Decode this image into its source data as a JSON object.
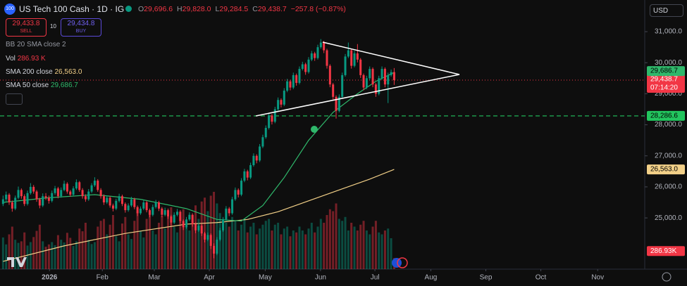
{
  "toolbar": {
    "logo": "100",
    "currency": "USD",
    "sell_price": "29,433.8",
    "sell": "SELL",
    "spread": "10",
    "buy_price": "29,434.8",
    "buy": "BUY",
    "bb_indicator": "BB 20 SMA close 2"
  },
  "chart_data": {
    "type": "candlestick",
    "title": "US Tech 100 Cash · 1D · IG",
    "legend_values": [
      {
        "prefix": "O",
        "text": "29,696.6"
      },
      {
        "prefix": "H",
        "text": "29,828.0"
      },
      {
        "prefix": "L",
        "text": "29,284.5"
      },
      {
        "prefix": "C",
        "text": "29,438.7"
      }
    ],
    "change": "−257.8 (−0.87%)",
    "countdown": "07:14:20",
    "up_color": "#089981",
    "down_color": "#f23645",
    "ohlc": [
      [
        25450,
        25720,
        25380,
        25600
      ],
      [
        25600,
        25850,
        25520,
        25750
      ],
      [
        25750,
        25800,
        25420,
        25500
      ],
      [
        25500,
        25560,
        25200,
        25300
      ],
      [
        25300,
        25720,
        25250,
        25650
      ],
      [
        25650,
        26010,
        25600,
        25900
      ],
      [
        25900,
        25950,
        25620,
        25700
      ],
      [
        25700,
        25760,
        25380,
        25450
      ],
      [
        25450,
        25880,
        25400,
        25800
      ],
      [
        25800,
        26120,
        25750,
        26000
      ],
      [
        26000,
        26060,
        25780,
        25850
      ],
      [
        25850,
        25900,
        25520,
        25600
      ],
      [
        25600,
        25650,
        25310,
        25400
      ],
      [
        25400,
        25790,
        25350,
        25700
      ],
      [
        25700,
        25800,
        25580,
        25650
      ],
      [
        25650,
        25720,
        25460,
        25550
      ],
      [
        25550,
        25880,
        25500,
        25800
      ],
      [
        25800,
        26030,
        25740,
        25950
      ],
      [
        25950,
        26000,
        25630,
        25700
      ],
      [
        25700,
        25980,
        25650,
        25900
      ],
      [
        25900,
        26200,
        25860,
        26100
      ],
      [
        26100,
        26150,
        25780,
        25850
      ],
      [
        25850,
        25900,
        25680,
        25750
      ],
      [
        25750,
        26020,
        25700,
        25950
      ],
      [
        25950,
        26240,
        25900,
        26150
      ],
      [
        26150,
        26190,
        25840,
        25900
      ],
      [
        25900,
        25960,
        25620,
        25700
      ],
      [
        25700,
        25760,
        25520,
        25600
      ],
      [
        25600,
        25930,
        25550,
        25850
      ],
      [
        25850,
        26120,
        25800,
        26050
      ],
      [
        26050,
        26310,
        26000,
        26200
      ],
      [
        26200,
        26250,
        25840,
        25900
      ],
      [
        25900,
        25960,
        25620,
        25700
      ],
      [
        25700,
        25760,
        25420,
        25500
      ],
      [
        25500,
        25720,
        25450,
        25650
      ],
      [
        25650,
        25700,
        25330,
        25400
      ],
      [
        25400,
        25460,
        25210,
        25300
      ],
      [
        25300,
        25620,
        25250,
        25550
      ],
      [
        25550,
        25780,
        25500,
        25700
      ],
      [
        25700,
        25750,
        25380,
        25450
      ],
      [
        25450,
        25500,
        25170,
        25250
      ],
      [
        25250,
        25470,
        25200,
        25400
      ],
      [
        25400,
        25680,
        25350,
        25600
      ],
      [
        25600,
        25650,
        25280,
        25350
      ],
      [
        25350,
        25400,
        25060,
        25150
      ],
      [
        25150,
        25370,
        25100,
        25300
      ],
      [
        25300,
        25580,
        25250,
        25500
      ],
      [
        25500,
        25550,
        25180,
        25250
      ],
      [
        25250,
        25300,
        25020,
        25100
      ],
      [
        25100,
        25430,
        25050,
        25350
      ],
      [
        25350,
        25580,
        25300,
        25500
      ],
      [
        25500,
        25550,
        25220,
        25300
      ],
      [
        25300,
        25350,
        25020,
        25100
      ],
      [
        25100,
        25330,
        25050,
        25250
      ],
      [
        25250,
        25300,
        24970,
        25050
      ],
      [
        25050,
        25100,
        24760,
        24850
      ],
      [
        24850,
        25180,
        24800,
        25100
      ],
      [
        25100,
        25290,
        25050,
        25200
      ],
      [
        25200,
        25250,
        24820,
        24900
      ],
      [
        24900,
        24950,
        24610,
        24700
      ],
      [
        24700,
        25030,
        24650,
        24950
      ],
      [
        24950,
        25180,
        24900,
        25100
      ],
      [
        25100,
        25150,
        24720,
        24800
      ],
      [
        24800,
        24850,
        24510,
        24600
      ],
      [
        24600,
        24830,
        24550,
        24750
      ],
      [
        24750,
        24800,
        24420,
        24500
      ],
      [
        24500,
        24550,
        24210,
        24300
      ],
      [
        24300,
        24530,
        24250,
        24450
      ],
      [
        24450,
        24500,
        24000,
        24100
      ],
      [
        24100,
        24180,
        23700,
        23850
      ],
      [
        23850,
        24380,
        23800,
        24300
      ],
      [
        24300,
        24680,
        24250,
        24600
      ],
      [
        24600,
        25030,
        24550,
        24950
      ],
      [
        24950,
        25380,
        24900,
        25300
      ],
      [
        25300,
        25350,
        25060,
        25150
      ],
      [
        25150,
        25680,
        25100,
        25600
      ],
      [
        25600,
        25980,
        25550,
        25900
      ],
      [
        25900,
        25950,
        25660,
        25750
      ],
      [
        25750,
        26280,
        25700,
        26200
      ],
      [
        26200,
        26580,
        26150,
        26500
      ],
      [
        26500,
        26550,
        26210,
        26300
      ],
      [
        26300,
        26780,
        26250,
        26700
      ],
      [
        26700,
        27080,
        26650,
        27000
      ],
      [
        27000,
        27050,
        26760,
        26850
      ],
      [
        26850,
        27380,
        26800,
        27300
      ],
      [
        27300,
        27680,
        27250,
        27600
      ],
      [
        27600,
        27980,
        27550,
        27900
      ],
      [
        27900,
        28380,
        27850,
        28300
      ],
      [
        28300,
        28350,
        28010,
        28100
      ],
      [
        28100,
        28580,
        28050,
        28500
      ],
      [
        28500,
        28880,
        28450,
        28800
      ],
      [
        28800,
        28850,
        28560,
        28650
      ],
      [
        28650,
        29180,
        28600,
        29100
      ],
      [
        29100,
        29480,
        29050,
        29400
      ],
      [
        29400,
        29450,
        29110,
        29200
      ],
      [
        29200,
        29680,
        29150,
        29600
      ],
      [
        29600,
        29650,
        29260,
        29350
      ],
      [
        29350,
        29880,
        29300,
        29800
      ],
      [
        29800,
        30030,
        29750,
        29950
      ],
      [
        29950,
        30000,
        29610,
        29700
      ],
      [
        29700,
        30180,
        29650,
        30100
      ],
      [
        30100,
        30380,
        30050,
        30300
      ],
      [
        30300,
        30350,
        30060,
        30150
      ],
      [
        30150,
        30580,
        30100,
        30500
      ],
      [
        30500,
        30760,
        30450,
        30650
      ],
      [
        30650,
        30700,
        30310,
        30400
      ],
      [
        30400,
        30450,
        29810,
        29900
      ],
      [
        29900,
        29950,
        29210,
        29300
      ],
      [
        29300,
        29350,
        28810,
        28900
      ],
      [
        28900,
        28950,
        28200,
        28450
      ],
      [
        28450,
        28980,
        28400,
        28900
      ],
      [
        28900,
        29680,
        28850,
        29600
      ],
      [
        29600,
        30280,
        29550,
        30200
      ],
      [
        30200,
        30650,
        30150,
        30400
      ],
      [
        30400,
        30450,
        29810,
        29900
      ],
      [
        29900,
        30380,
        29850,
        30300
      ],
      [
        30300,
        30600,
        30010,
        30100
      ],
      [
        30100,
        30150,
        29510,
        29600
      ],
      [
        29600,
        29650,
        29110,
        29200
      ],
      [
        29200,
        29580,
        29150,
        29500
      ],
      [
        29500,
        29880,
        29450,
        29800
      ],
      [
        29800,
        29850,
        29210,
        29300
      ],
      [
        29300,
        29350,
        28900,
        29000
      ],
      [
        29000,
        29580,
        28950,
        29500
      ],
      [
        29500,
        29880,
        29450,
        29800
      ],
      [
        29800,
        29850,
        29210,
        29300
      ],
      [
        29300,
        29680,
        28700,
        29600
      ],
      [
        29600,
        29780,
        29550,
        29696.5
      ],
      [
        29696.6,
        29828.0,
        29284.5,
        29438.7
      ]
    ],
    "volume": {
      "name": "Vol",
      "last_label": "286.93 K",
      "axis_label": "286.93K",
      "values": [
        820,
        640,
        900,
        1100,
        760,
        680,
        720,
        950,
        610,
        700,
        830,
        990,
        1150,
        720,
        580,
        640,
        700,
        620,
        880,
        760,
        690,
        940,
        810,
        600,
        720,
        1050,
        980,
        1200,
        760,
        650,
        700,
        1100,
        1250,
        1300,
        900,
        1150,
        1400,
        850,
        720,
        1180,
        1350,
        900,
        780,
        1250,
        1500,
        980,
        820,
        1300,
        1450,
        1000,
        900,
        1200,
        1380,
        1050,
        1400,
        1600,
        1100,
        950,
        1350,
        1550,
        1200,
        1000,
        1400,
        1650,
        1300,
        1750,
        1850,
        1500,
        1900,
        2000,
        1700,
        1450,
        1300,
        1200,
        1100,
        1350,
        1250,
        1000,
        1150,
        1300,
        950,
        1100,
        1200,
        900,
        1050,
        1150,
        1250,
        1300,
        1000,
        1150,
        1200,
        900,
        1050,
        1100,
        850,
        1000,
        950,
        1100,
        1000,
        900,
        1050,
        1200,
        950,
        1100,
        1300,
        1200,
        1400,
        1550,
        1500,
        1700,
        1300,
        1250,
        1350,
        1000,
        1200,
        1100,
        1000,
        1150,
        1250,
        1000,
        900,
        1100,
        1250,
        950,
        900,
        1000,
        1050,
        800,
        286.93
      ],
      "max": 2000
    },
    "series": [
      {
        "name": "SMA 200 close",
        "value_label": "26,563.0",
        "color": "#f2d088",
        "x": [
          0,
          20,
          40,
          60,
          70,
          80,
          90,
          100,
          110,
          120,
          128
        ],
        "values": [
          23600,
          24100,
          24500,
          24800,
          24850,
          24950,
          25200,
          25550,
          25900,
          26250,
          26563
        ]
      },
      {
        "name": "SMA 50 close",
        "value_label": "29,686.7",
        "color": "#2fb86b",
        "x": [
          0,
          15,
          30,
          45,
          60,
          70,
          78,
          85,
          92,
          100,
          108,
          116,
          122,
          128
        ],
        "values": [
          25500,
          25650,
          25750,
          25600,
          25300,
          24950,
          24900,
          25400,
          26300,
          27500,
          28400,
          29000,
          29400,
          29686.7
        ]
      }
    ],
    "hline": {
      "value": 28286.6,
      "label": "28,286.6",
      "color": "#22c55e"
    },
    "xlim": [
      -1,
      210
    ],
    "ylim": [
      23350,
      32020
    ],
    "xticks": [
      {
        "value": 15.2,
        "label": "2026"
      },
      {
        "value": 32.5,
        "label": "Feb"
      },
      {
        "value": 49.5,
        "label": "Mar"
      },
      {
        "value": 67.5,
        "label": "Apr"
      },
      {
        "value": 85.8,
        "label": "May"
      },
      {
        "value": 103.9,
        "label": "Jun"
      },
      {
        "value": 121.7,
        "label": "Jul"
      },
      {
        "value": 140,
        "label": "Aug"
      },
      {
        "value": 158,
        "label": "Sep"
      },
      {
        "value": 176,
        "label": "Oct"
      },
      {
        "value": 194.6,
        "label": "Nov"
      }
    ],
    "yticks": [
      {
        "value": 31000,
        "label": "31,000.0"
      },
      {
        "value": 30000,
        "label": "30,000.0"
      },
      {
        "value": 29000,
        "label": "29,000.0"
      },
      {
        "value": 28000,
        "label": "28,000.0"
      },
      {
        "value": 27000,
        "label": "27,000.0"
      },
      {
        "value": 26000,
        "label": "26,000.0"
      },
      {
        "value": 25000,
        "label": "25,000.0"
      }
    ]
  }
}
